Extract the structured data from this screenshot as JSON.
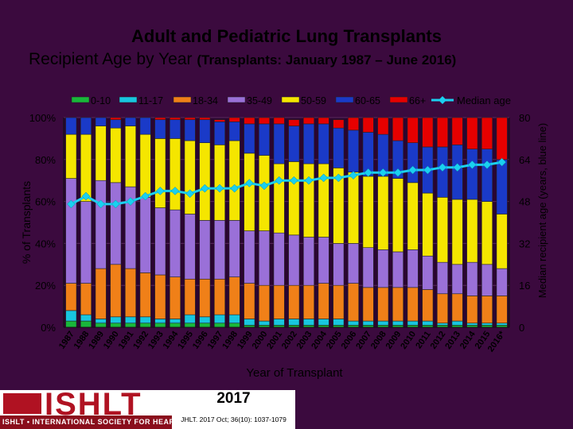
{
  "header": {
    "title": "Adult and Pediatric Lung Transplants",
    "subtitle_main": "Recipient Age by Year",
    "subtitle_paren": "(Transplants: January 1987 – June 2016)"
  },
  "footer": {
    "logo_text": "ISHLT",
    "logo_tagline": "ISHLT • INTERNATIONAL SOCIETY FOR HEART AND LUNG TRANSPLANTATION",
    "year": "2017",
    "citation": "JHLT. 2017 Oct; 36(10): 1037-1079"
  },
  "chart_data": {
    "type": "bar",
    "stacked": true,
    "title": "Recipient Age by Year",
    "xlabel": "Year of Transplant",
    "ylabel": "% of Transplants",
    "y2label": "Median recipient age (years, blue line)",
    "ylim": [
      0,
      100
    ],
    "y2lim": [
      0,
      80
    ],
    "yticks": [
      "0%",
      "20%",
      "40%",
      "60%",
      "80%",
      "100%"
    ],
    "y2ticks": [
      "0",
      "16",
      "32",
      "48",
      "64",
      "80"
    ],
    "legend_position": "top",
    "categories": [
      "1987",
      "1988",
      "1989",
      "1990",
      "1991",
      "1992",
      "1993",
      "1994",
      "1995",
      "1996",
      "1997",
      "1998",
      "1999",
      "2000",
      "2001",
      "2002",
      "2003",
      "2004",
      "2005",
      "2006",
      "2007",
      "2008",
      "2009",
      "2010",
      "2011",
      "2012",
      "2013",
      "2014",
      "2015",
      "2016*"
    ],
    "series": [
      {
        "name": "0-10",
        "color": "#19b83a",
        "values": [
          3,
          3,
          2,
          2,
          2,
          2,
          2,
          2,
          2,
          2,
          2,
          2,
          1,
          1,
          1,
          1,
          1,
          1,
          1,
          1,
          1,
          1,
          1,
          1,
          1,
          1,
          1,
          1,
          1,
          1
        ]
      },
      {
        "name": "11-17",
        "color": "#18c6e0",
        "values": [
          5,
          3,
          2,
          3,
          3,
          3,
          2,
          2,
          4,
          3,
          4,
          4,
          3,
          2,
          3,
          3,
          3,
          3,
          3,
          2,
          2,
          2,
          2,
          2,
          2,
          1,
          2,
          1,
          1,
          1
        ]
      },
      {
        "name": "18-34",
        "color": "#f08018",
        "values": [
          13,
          15,
          24,
          25,
          23,
          21,
          21,
          20,
          17,
          18,
          17,
          18,
          17,
          17,
          16,
          16,
          16,
          17,
          16,
          18,
          16,
          16,
          16,
          16,
          15,
          14,
          13,
          13,
          13,
          13
        ]
      },
      {
        "name": "35-49",
        "color": "#9a70d8",
        "values": [
          50,
          39,
          42,
          39,
          39,
          36,
          32,
          32,
          31,
          28,
          28,
          27,
          25,
          26,
          25,
          24,
          23,
          22,
          20,
          19,
          19,
          18,
          17,
          18,
          16,
          15,
          14,
          16,
          15,
          13
        ]
      },
      {
        "name": "50-59",
        "color": "#f5e600",
        "values": [
          21,
          32,
          26,
          26,
          29,
          30,
          33,
          34,
          35,
          37,
          36,
          38,
          37,
          36,
          33,
          35,
          35,
          35,
          36,
          34,
          34,
          35,
          35,
          32,
          30,
          31,
          31,
          30,
          30,
          26
        ]
      },
      {
        "name": "60-65",
        "color": "#1a3ac8",
        "values": [
          8,
          8,
          4,
          4,
          4,
          8,
          9,
          9,
          10,
          11,
          11,
          9,
          14,
          15,
          19,
          17,
          19,
          19,
          19,
          20,
          21,
          20,
          18,
          19,
          22,
          24,
          26,
          24,
          25,
          26
        ]
      },
      {
        "name": "66+",
        "color": "#e60000",
        "values": [
          0,
          0,
          0,
          1,
          0,
          0,
          1,
          1,
          1,
          1,
          1,
          2,
          3,
          3,
          3,
          3,
          3,
          3,
          4,
          6,
          7,
          8,
          11,
          12,
          14,
          14,
          13,
          15,
          15,
          20
        ]
      }
    ],
    "median_line": {
      "name": "Median age",
      "color": "#1ad0f0",
      "values": [
        47,
        50,
        47,
        47,
        48,
        50,
        52,
        52,
        51,
        53,
        53,
        53,
        55,
        54,
        56,
        56,
        56,
        57,
        57,
        58,
        59,
        59,
        59,
        60,
        60,
        61,
        61,
        62,
        62,
        63
      ]
    }
  }
}
